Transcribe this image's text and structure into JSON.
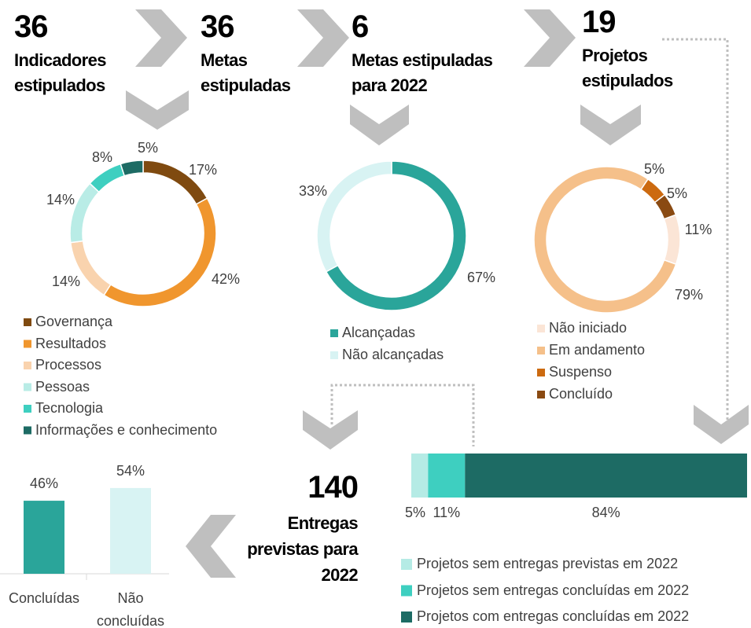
{
  "headlines": [
    {
      "number": 36,
      "label": [
        "Indicadores",
        "estipulados"
      ]
    },
    {
      "number": 36,
      "label": [
        "Metas",
        "estipuladas"
      ]
    },
    {
      "number": 6,
      "label": [
        "Metas estipuladas",
        "para 2022"
      ]
    },
    {
      "number": 19,
      "label": [
        "Projetos",
        "estipulados"
      ]
    },
    {
      "number": 140,
      "label": [
        "Entregas",
        "previstas para",
        "2022"
      ]
    }
  ],
  "chart_data": [
    {
      "type": "donut",
      "categories": [
        "Governança",
        "Resultados",
        "Processos",
        "Pessoas",
        "Tecnologia",
        "Informações e conhecimento"
      ],
      "values": [
        17,
        42,
        14,
        14,
        8,
        5
      ],
      "value_labels": [
        "17%",
        "42%",
        "14%",
        "14%",
        "8%",
        "5%"
      ],
      "colors": [
        "#7f4a10",
        "#f0962e",
        "#f9d3ae",
        "#b9ece6",
        "#3ecfc0",
        "#1d6b64"
      ]
    },
    {
      "type": "donut",
      "categories": [
        "Alcançadas",
        "Não alcançadas"
      ],
      "values": [
        67,
        33
      ],
      "value_labels": [
        "67%",
        "33%"
      ],
      "colors": [
        "#2aa59a",
        "#d8f3f3"
      ]
    },
    {
      "type": "donut",
      "categories": [
        "Não iniciado",
        "Em andamento",
        "Suspenso",
        "Concluído"
      ],
      "values": [
        11,
        79,
        5,
        5
      ],
      "value_labels": [
        "11%",
        "79%",
        "5%",
        "5%"
      ],
      "colors": [
        "#fbe5d6",
        "#f5c08a",
        "#cc6a10",
        "#8a4a12"
      ]
    },
    {
      "type": "stacked_bar",
      "xlim": [
        0,
        100
      ],
      "series": [
        {
          "name": "Projetos sem entregas previstas em 2022",
          "color": "#b5ebe5",
          "values": [
            5
          ],
          "value_labels": [
            "5%"
          ]
        },
        {
          "name": "Projetos sem entregas concluídas em 2022",
          "color": "#3ecfc0",
          "values": [
            11
          ],
          "value_labels": [
            "11%"
          ]
        },
        {
          "name": "Projetos com entregas concluídas em 2022",
          "color": "#1d6b64",
          "values": [
            84
          ],
          "value_labels": [
            "84%"
          ]
        }
      ]
    },
    {
      "type": "bar",
      "categories": [
        "Concluídas",
        "Não concluídas"
      ],
      "values": [
        46,
        54
      ],
      "value_labels": [
        "46%",
        "54%"
      ],
      "colors": [
        "#2aa59a",
        "#d8f3f3"
      ]
    }
  ]
}
